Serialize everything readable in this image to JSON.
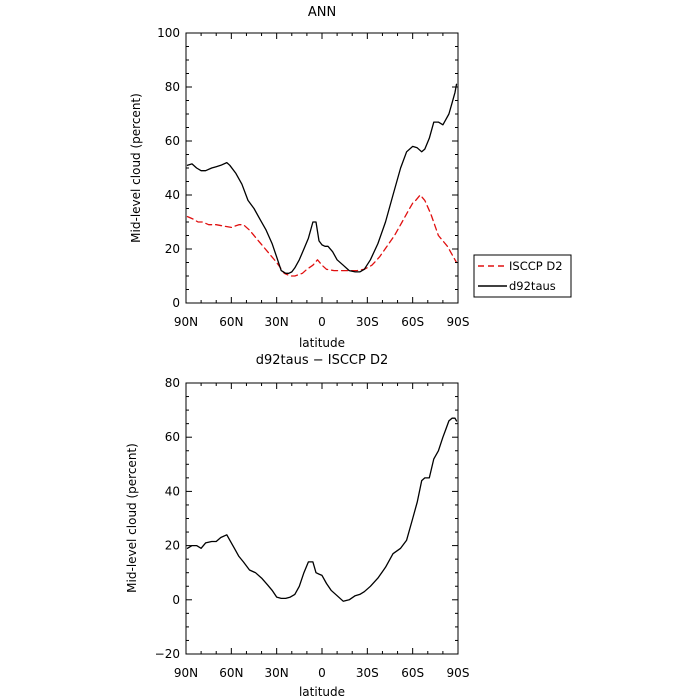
{
  "chart_data": [
    {
      "type": "line",
      "title": "ANN",
      "xlabel": "latitude",
      "ylabel": "Mid-level cloud (percent)",
      "x_domain": [
        90,
        -90
      ],
      "x_ticks": [
        90,
        60,
        30,
        0,
        -30,
        -60,
        -90
      ],
      "x_tick_labels": [
        "90N",
        "60N",
        "30N",
        "0",
        "30S",
        "60S",
        "90S"
      ],
      "ylim": [
        0,
        100
      ],
      "y_ticks": [
        0,
        20,
        40,
        60,
        80,
        100
      ],
      "y_tick_labels": [
        "0",
        "20",
        "40",
        "60",
        "80",
        "100"
      ],
      "legend_position": "right",
      "series": [
        {
          "name": "ISCCP D2",
          "color": "#e01010",
          "dash": true,
          "x": [
            89,
            85,
            82,
            79,
            75,
            70,
            65,
            60,
            55,
            52,
            48,
            42,
            36,
            30,
            25,
            21,
            18,
            13,
            10,
            6,
            3,
            0,
            -3,
            -8,
            -13,
            -18,
            -23,
            -28,
            -33,
            -38,
            -43,
            -48,
            -53,
            -57,
            -60,
            -62,
            -65,
            -68,
            -72,
            -77,
            -80,
            -83,
            -86,
            -89
          ],
          "y": [
            32,
            31,
            30,
            30,
            29,
            29,
            28.5,
            28,
            29,
            29,
            27,
            23,
            19,
            15,
            11,
            10,
            10,
            11,
            12.5,
            14,
            16,
            14,
            12.5,
            12,
            12,
            12,
            12,
            12.5,
            14,
            17,
            21,
            25,
            30,
            34,
            37,
            38,
            40,
            38,
            33,
            25,
            23,
            21,
            18,
            15
          ]
        },
        {
          "name": "d92taus",
          "color": "#000000",
          "dash": false,
          "x": [
            89,
            86,
            83,
            80,
            77,
            73,
            70,
            67,
            63,
            61,
            57,
            53,
            49,
            45,
            41,
            37,
            33,
            30,
            27,
            24,
            22,
            20,
            18,
            15,
            12,
            9,
            6,
            4,
            2,
            0,
            -2,
            -4,
            -7,
            -10,
            -14,
            -18,
            -22,
            -25,
            -28,
            -32,
            -37,
            -42,
            -47,
            -52,
            -56,
            -60,
            -63,
            -66,
            -68,
            -71,
            -74,
            -77,
            -80,
            -82,
            -84,
            -86,
            -88,
            -89
          ],
          "y": [
            51,
            51.5,
            50,
            49,
            49,
            50,
            50.5,
            51,
            52,
            51,
            48,
            44,
            38,
            35,
            31,
            27,
            22,
            17,
            12,
            11,
            11,
            11.5,
            13,
            16,
            20,
            24,
            30,
            30,
            23,
            21.5,
            21,
            21,
            19,
            16,
            14,
            12,
            11.5,
            11.5,
            12.5,
            16,
            22,
            30,
            40,
            50,
            56,
            58,
            57.5,
            56,
            57,
            61,
            67,
            67,
            66,
            68,
            70,
            74,
            78,
            81
          ]
        }
      ]
    },
    {
      "type": "line",
      "title": "d92taus − ISCCP D2",
      "xlabel": "latitude",
      "ylabel": "Mid-level cloud (percent)",
      "x_domain": [
        90,
        -90
      ],
      "x_ticks": [
        90,
        60,
        30,
        0,
        -30,
        -60,
        -90
      ],
      "x_tick_labels": [
        "90N",
        "60N",
        "30N",
        "0",
        "30S",
        "60S",
        "90S"
      ],
      "ylim": [
        -20,
        80
      ],
      "y_ticks": [
        -20,
        0,
        20,
        40,
        60,
        80
      ],
      "y_tick_labels": [
        "−20",
        "0",
        "20",
        "40",
        "60",
        "80"
      ],
      "series": [
        {
          "color": "#000000",
          "dash": false,
          "x": [
            89,
            86,
            83,
            80,
            77,
            73,
            70,
            67,
            63,
            61,
            58,
            55,
            52,
            48,
            44,
            40,
            36,
            33,
            30,
            27,
            24,
            21,
            18,
            15,
            12,
            9,
            6,
            4,
            2,
            0,
            -3,
            -6,
            -10,
            -14,
            -18,
            -22,
            -25,
            -28,
            -32,
            -37,
            -42,
            -47,
            -52,
            -56,
            -60,
            -63,
            -66,
            -68,
            -71,
            -74,
            -77,
            -80,
            -82,
            -84,
            -86,
            -88,
            -89
          ],
          "y": [
            19,
            20,
            20,
            19,
            21,
            21.5,
            21.5,
            23,
            24,
            22,
            19,
            16,
            14,
            11,
            10,
            8,
            5.5,
            3.5,
            1,
            0.5,
            0.5,
            1,
            2,
            5,
            10,
            14,
            14,
            10,
            9.5,
            9,
            6,
            3.5,
            1.5,
            -0.5,
            0,
            1.5,
            2,
            3,
            5,
            8,
            12,
            17,
            19,
            22,
            30,
            36,
            44,
            45,
            45,
            52,
            55,
            60,
            63,
            66,
            67,
            67,
            66
          ]
        }
      ]
    }
  ],
  "legend": {
    "items": [
      {
        "label": "ISCCP D2",
        "color": "#e01010",
        "dash": true
      },
      {
        "label": "d92taus",
        "color": "#000000",
        "dash": false
      }
    ]
  }
}
